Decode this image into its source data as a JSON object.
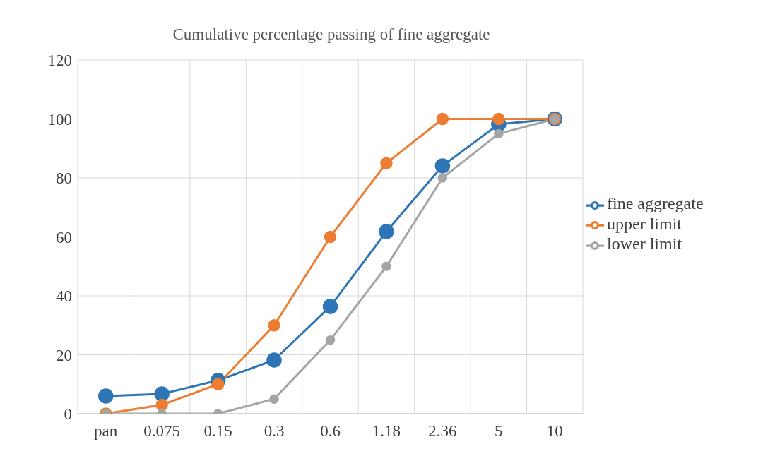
{
  "chart_data": {
    "type": "line",
    "title": "Cumulative percentage passing of fine aggregate",
    "categories": [
      "pan",
      "0.075",
      "0.15",
      "0.3",
      "0.6",
      "1.18",
      "2.36",
      "5",
      "10"
    ],
    "series": [
      {
        "name": "fine aggregate",
        "color": "#2e75b6",
        "values": [
          6.0,
          6.7,
          11.3,
          18.2,
          36.4,
          61.8,
          84.1,
          98.2,
          100
        ]
      },
      {
        "name": "upper limit",
        "color": "#ed7d31",
        "values": [
          0,
          3,
          10,
          30,
          60,
          85,
          100,
          100,
          100
        ]
      },
      {
        "name": "lower limit",
        "color": "#a5a5a5",
        "values": [
          0,
          0,
          0,
          5,
          25,
          50,
          80,
          95,
          100
        ]
      }
    ],
    "ylim": [
      0,
      120
    ],
    "yticks": [
      0,
      20,
      40,
      60,
      80,
      100,
      120
    ],
    "grid": true,
    "legend": "right",
    "marker": "circle",
    "line_style": "solid"
  }
}
